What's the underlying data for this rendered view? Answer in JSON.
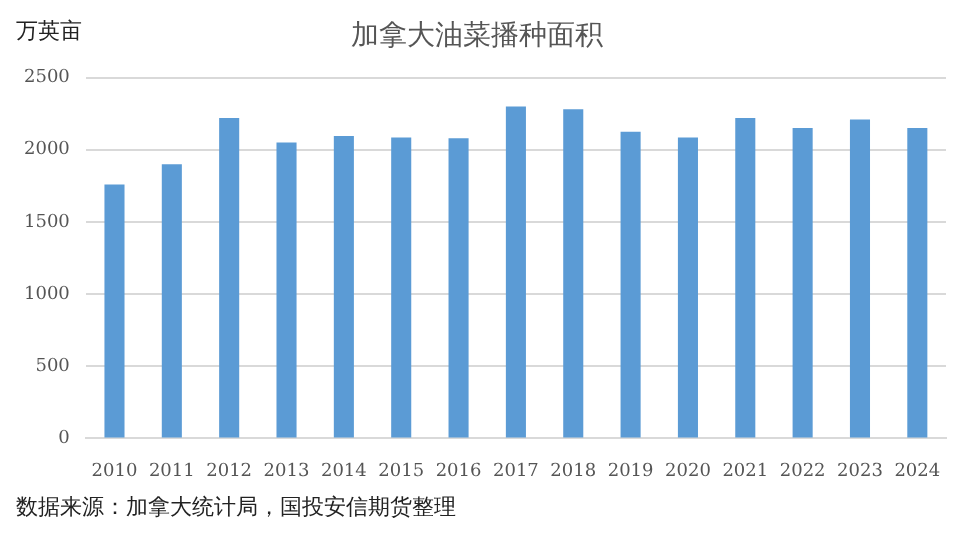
{
  "chart_data": {
    "type": "bar",
    "title": "加拿大油菜播种面积",
    "ylabel": "万英亩",
    "categories": [
      "2010",
      "2011",
      "2012",
      "2013",
      "2014",
      "2015",
      "2016",
      "2017",
      "2018",
      "2019",
      "2020",
      "2021",
      "2022",
      "2023",
      "2024"
    ],
    "values": [
      1760,
      1900,
      2220,
      2050,
      2095,
      2085,
      2080,
      2300,
      2280,
      2125,
      2085,
      2220,
      2150,
      2210,
      2150
    ],
    "color": "#5b9bd5",
    "ylim": [
      0,
      2500
    ],
    "yticks": [
      0,
      500,
      1000,
      1500,
      2000,
      2500
    ],
    "grid": "y",
    "annotations": [
      "数据来源：加拿大统计局，国投安信期货整理"
    ]
  }
}
